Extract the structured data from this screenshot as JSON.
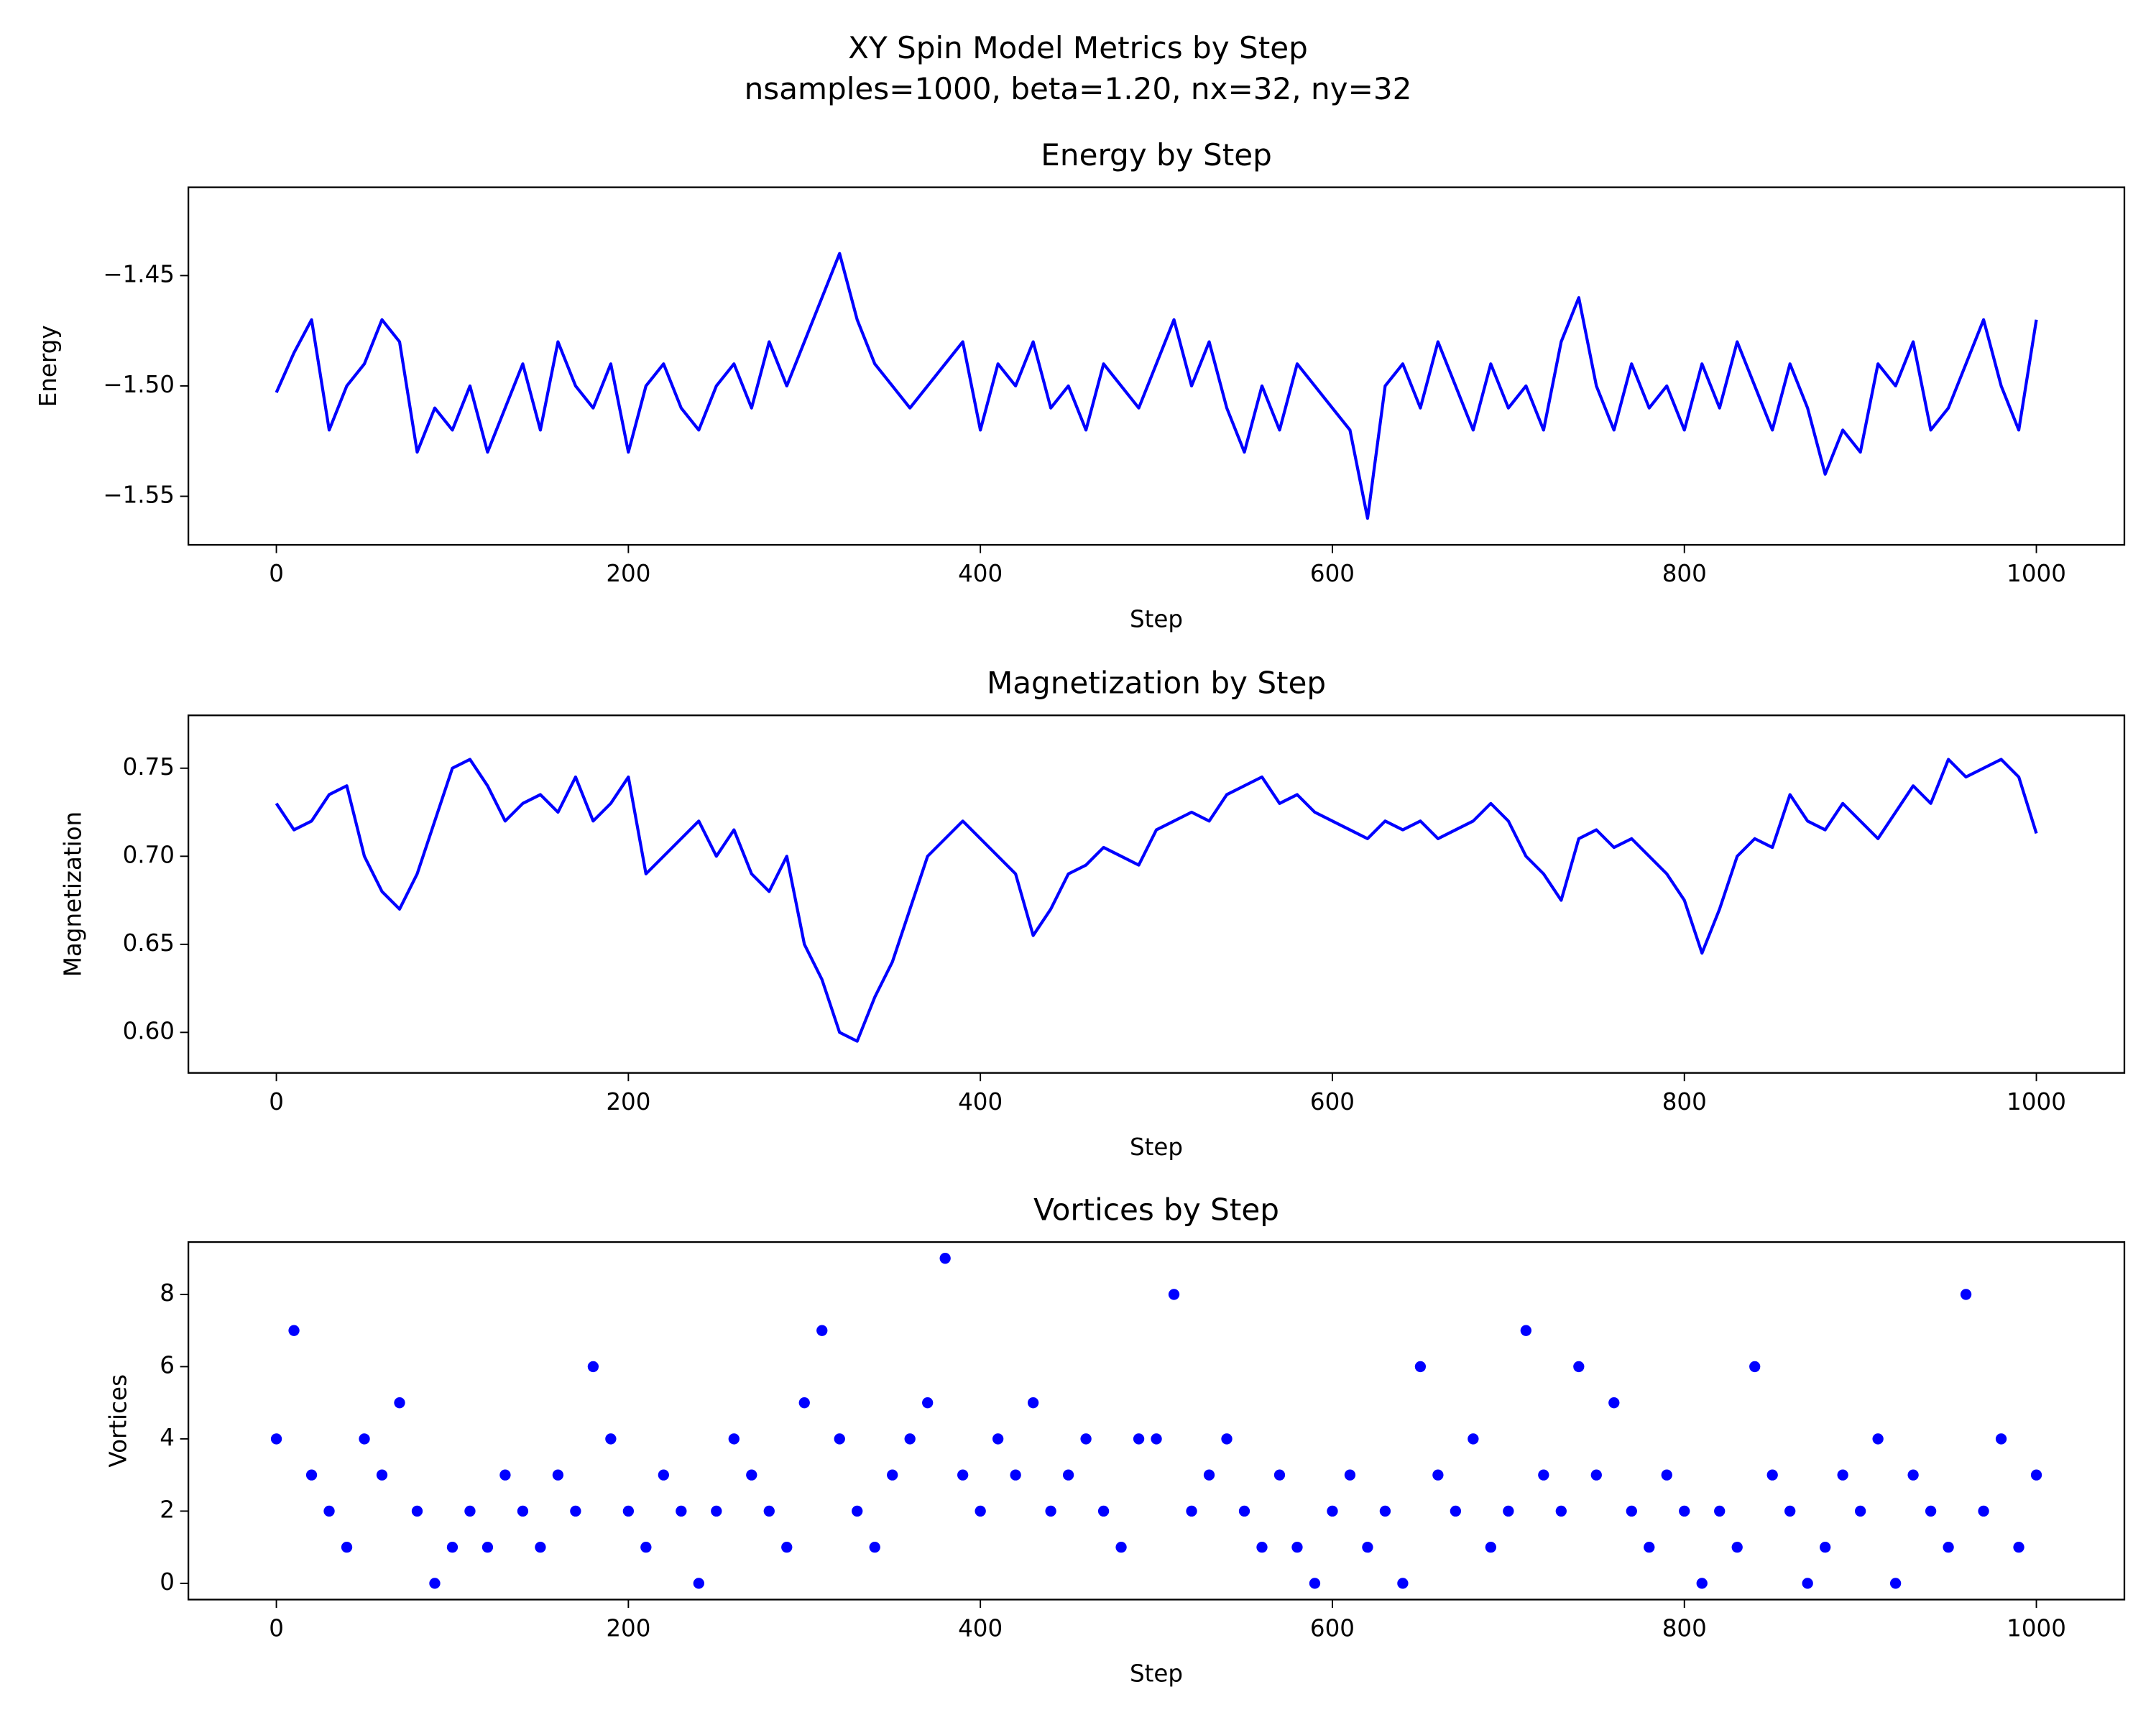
{
  "title": "XY Spin Model Metrics by Step",
  "subtitle": "nsamples=1000, beta=1.20, nx=32, ny=32",
  "chart_data": [
    {
      "type": "line",
      "title": "Energy by Step",
      "xlabel": "Step",
      "ylabel": "Energy",
      "color": "#0000ff",
      "grid": false,
      "x": [
        0,
        10,
        20,
        30,
        40,
        50,
        60,
        70,
        80,
        90,
        100,
        110,
        120,
        130,
        140,
        150,
        160,
        170,
        180,
        190,
        200,
        210,
        220,
        230,
        240,
        250,
        260,
        270,
        280,
        290,
        300,
        310,
        320,
        330,
        340,
        350,
        360,
        370,
        380,
        390,
        400,
        410,
        420,
        430,
        440,
        450,
        460,
        470,
        480,
        490,
        500,
        510,
        520,
        530,
        540,
        550,
        560,
        570,
        580,
        590,
        600,
        610,
        620,
        630,
        640,
        650,
        660,
        670,
        680,
        690,
        700,
        710,
        720,
        730,
        740,
        750,
        760,
        770,
        780,
        790,
        800,
        810,
        820,
        830,
        840,
        850,
        860,
        870,
        880,
        890,
        900,
        910,
        920,
        930,
        940,
        950,
        960,
        970,
        980,
        990,
        1000
      ],
      "values": [
        -1.503,
        -1.485,
        -1.47,
        -1.52,
        -1.5,
        -1.49,
        -1.47,
        -1.48,
        -1.53,
        -1.51,
        -1.52,
        -1.5,
        -1.53,
        -1.51,
        -1.49,
        -1.52,
        -1.48,
        -1.5,
        -1.51,
        -1.49,
        -1.53,
        -1.5,
        -1.49,
        -1.51,
        -1.52,
        -1.5,
        -1.49,
        -1.51,
        -1.48,
        -1.5,
        -1.48,
        -1.46,
        -1.44,
        -1.47,
        -1.49,
        -1.5,
        -1.51,
        -1.5,
        -1.49,
        -1.48,
        -1.52,
        -1.49,
        -1.5,
        -1.48,
        -1.51,
        -1.5,
        -1.52,
        -1.49,
        -1.5,
        -1.51,
        -1.49,
        -1.47,
        -1.5,
        -1.48,
        -1.51,
        -1.53,
        -1.5,
        -1.52,
        -1.49,
        -1.5,
        -1.51,
        -1.52,
        -1.56,
        -1.5,
        -1.49,
        -1.51,
        -1.48,
        -1.5,
        -1.52,
        -1.49,
        -1.51,
        -1.5,
        -1.52,
        -1.48,
        -1.46,
        -1.5,
        -1.52,
        -1.49,
        -1.51,
        -1.5,
        -1.52,
        -1.49,
        -1.51,
        -1.48,
        -1.5,
        -1.52,
        -1.49,
        -1.51,
        -1.54,
        -1.52,
        -1.53,
        -1.49,
        -1.5,
        -1.48,
        -1.52,
        -1.51,
        -1.49,
        -1.47,
        -1.5,
        -1.52,
        -1.47
      ],
      "xlim": [
        -50,
        1050
      ],
      "xticks": [
        0,
        200,
        400,
        600,
        800,
        1000
      ],
      "ylim": [
        -1.572,
        -1.41
      ],
      "yticks": [
        {
          "value": -1.55,
          "label": "−1.55"
        },
        {
          "value": -1.5,
          "label": "−1.50"
        },
        {
          "value": -1.45,
          "label": "−1.45"
        }
      ]
    },
    {
      "type": "line",
      "title": "Magnetization by Step",
      "xlabel": "Step",
      "ylabel": "Magnetization",
      "color": "#0000ff",
      "grid": false,
      "x": [
        0,
        10,
        20,
        30,
        40,
        50,
        60,
        70,
        80,
        90,
        100,
        110,
        120,
        130,
        140,
        150,
        160,
        170,
        180,
        190,
        200,
        210,
        220,
        230,
        240,
        250,
        260,
        270,
        280,
        290,
        300,
        310,
        320,
        330,
        340,
        350,
        360,
        370,
        380,
        390,
        400,
        410,
        420,
        430,
        440,
        450,
        460,
        470,
        480,
        490,
        500,
        510,
        520,
        530,
        540,
        550,
        560,
        570,
        580,
        590,
        600,
        610,
        620,
        630,
        640,
        650,
        660,
        670,
        680,
        690,
        700,
        710,
        720,
        730,
        740,
        750,
        760,
        770,
        780,
        790,
        800,
        810,
        820,
        830,
        840,
        850,
        860,
        870,
        880,
        890,
        900,
        910,
        920,
        930,
        940,
        950,
        960,
        970,
        980,
        990,
        1000
      ],
      "values": [
        0.73,
        0.715,
        0.72,
        0.735,
        0.74,
        0.7,
        0.68,
        0.67,
        0.69,
        0.72,
        0.75,
        0.755,
        0.74,
        0.72,
        0.73,
        0.735,
        0.725,
        0.745,
        0.72,
        0.73,
        0.745,
        0.69,
        0.7,
        0.71,
        0.72,
        0.7,
        0.715,
        0.69,
        0.68,
        0.7,
        0.65,
        0.63,
        0.6,
        0.595,
        0.62,
        0.64,
        0.67,
        0.7,
        0.71,
        0.72,
        0.71,
        0.7,
        0.69,
        0.655,
        0.67,
        0.69,
        0.695,
        0.705,
        0.7,
        0.695,
        0.715,
        0.72,
        0.725,
        0.72,
        0.735,
        0.74,
        0.745,
        0.73,
        0.735,
        0.725,
        0.72,
        0.715,
        0.71,
        0.72,
        0.715,
        0.72,
        0.71,
        0.715,
        0.72,
        0.73,
        0.72,
        0.7,
        0.69,
        0.675,
        0.71,
        0.715,
        0.705,
        0.71,
        0.7,
        0.69,
        0.675,
        0.645,
        0.67,
        0.7,
        0.71,
        0.705,
        0.735,
        0.72,
        0.715,
        0.73,
        0.72,
        0.71,
        0.725,
        0.74,
        0.73,
        0.755,
        0.745,
        0.75,
        0.755,
        0.745,
        0.713
      ],
      "xlim": [
        -50,
        1050
      ],
      "xticks": [
        0,
        200,
        400,
        600,
        800,
        1000
      ],
      "ylim": [
        0.577,
        0.78
      ],
      "yticks": [
        {
          "value": 0.6,
          "label": "0.60"
        },
        0.65,
        {
          "value": 0.7,
          "label": "0.70"
        },
        0.75
      ]
    },
    {
      "type": "scatter",
      "title": "Vortices by Step",
      "xlabel": "Step",
      "ylabel": "Vortices",
      "color": "#0000ff",
      "grid": false,
      "x": [
        0,
        10,
        20,
        30,
        40,
        50,
        60,
        70,
        80,
        90,
        100,
        110,
        120,
        130,
        140,
        150,
        160,
        170,
        180,
        190,
        200,
        210,
        220,
        230,
        240,
        250,
        260,
        270,
        280,
        290,
        300,
        310,
        320,
        330,
        340,
        350,
        360,
        370,
        380,
        390,
        400,
        410,
        420,
        430,
        440,
        450,
        460,
        470,
        480,
        490,
        500,
        510,
        520,
        530,
        540,
        550,
        560,
        570,
        580,
        590,
        600,
        610,
        620,
        630,
        640,
        650,
        660,
        670,
        680,
        690,
        700,
        710,
        720,
        730,
        740,
        750,
        760,
        770,
        780,
        790,
        800,
        810,
        820,
        830,
        840,
        850,
        860,
        870,
        880,
        890,
        900,
        910,
        920,
        930,
        940,
        950,
        960,
        970,
        980,
        990,
        1000
      ],
      "values": [
        4,
        7,
        3,
        2,
        1,
        4,
        3,
        5,
        2,
        0,
        1,
        2,
        1,
        3,
        2,
        1,
        3,
        2,
        6,
        4,
        2,
        1,
        3,
        2,
        0,
        2,
        4,
        3,
        2,
        1,
        5,
        7,
        4,
        2,
        1,
        3,
        4,
        5,
        9,
        3,
        2,
        4,
        3,
        5,
        2,
        3,
        4,
        2,
        1,
        4,
        4,
        8,
        2,
        3,
        4,
        2,
        1,
        3,
        1,
        0,
        2,
        3,
        1,
        2,
        0,
        6,
        3,
        2,
        4,
        1,
        2,
        7,
        3,
        2,
        6,
        3,
        5,
        2,
        1,
        3,
        2,
        0,
        2,
        1,
        6,
        3,
        2,
        0,
        1,
        3,
        2,
        4,
        0,
        3,
        2,
        1,
        8,
        2,
        4,
        1,
        3
      ],
      "xlim": [
        -50,
        1050
      ],
      "xticks": [
        0,
        200,
        400,
        600,
        800,
        1000
      ],
      "ylim": [
        -0.45,
        9.45
      ],
      "yticks": [
        0,
        2,
        4,
        6,
        8
      ]
    }
  ]
}
